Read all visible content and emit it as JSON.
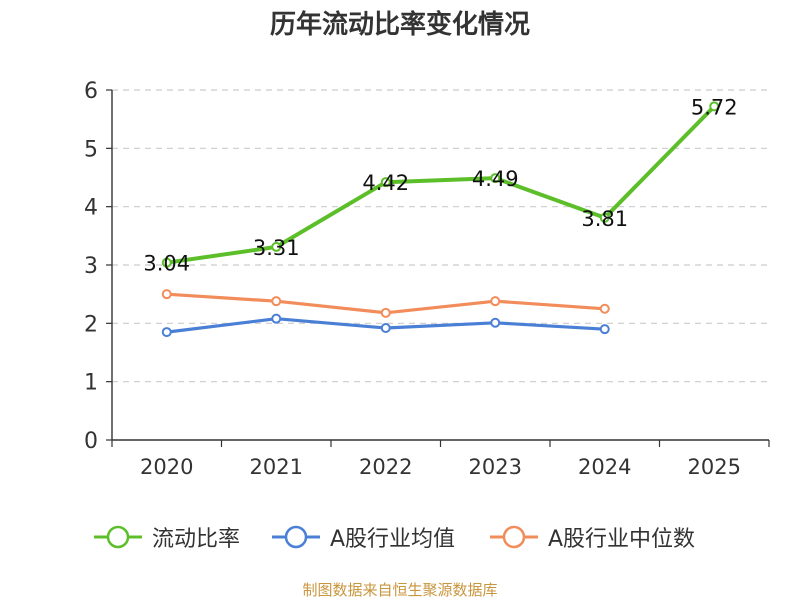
{
  "chart_data": {
    "type": "line",
    "title": "历年流动比率变化情况",
    "categories": [
      "2020",
      "2021",
      "2022",
      "2023",
      "2024",
      "2025"
    ],
    "ylim": [
      0,
      6
    ],
    "yticks": [
      0,
      1,
      2,
      3,
      4,
      5,
      6
    ],
    "grid": true,
    "legend_position": "bottom",
    "series": [
      {
        "name": "流动比率",
        "color": "#5cbf2a",
        "values": [
          3.04,
          3.31,
          4.42,
          4.49,
          3.81,
          5.72
        ],
        "labels": [
          "3.04",
          "3.31",
          "4.42",
          "4.49",
          "3.81",
          "5.72"
        ]
      },
      {
        "name": "A股行业均值",
        "color": "#4a7fd6",
        "values": [
          1.85,
          2.08,
          1.92,
          2.01,
          1.9,
          null
        ]
      },
      {
        "name": "A股行业中位数",
        "color": "#f28c5a",
        "values": [
          2.5,
          2.38,
          2.18,
          2.38,
          2.25,
          null
        ]
      }
    ]
  },
  "source": "制图数据来自恒生聚源数据库"
}
